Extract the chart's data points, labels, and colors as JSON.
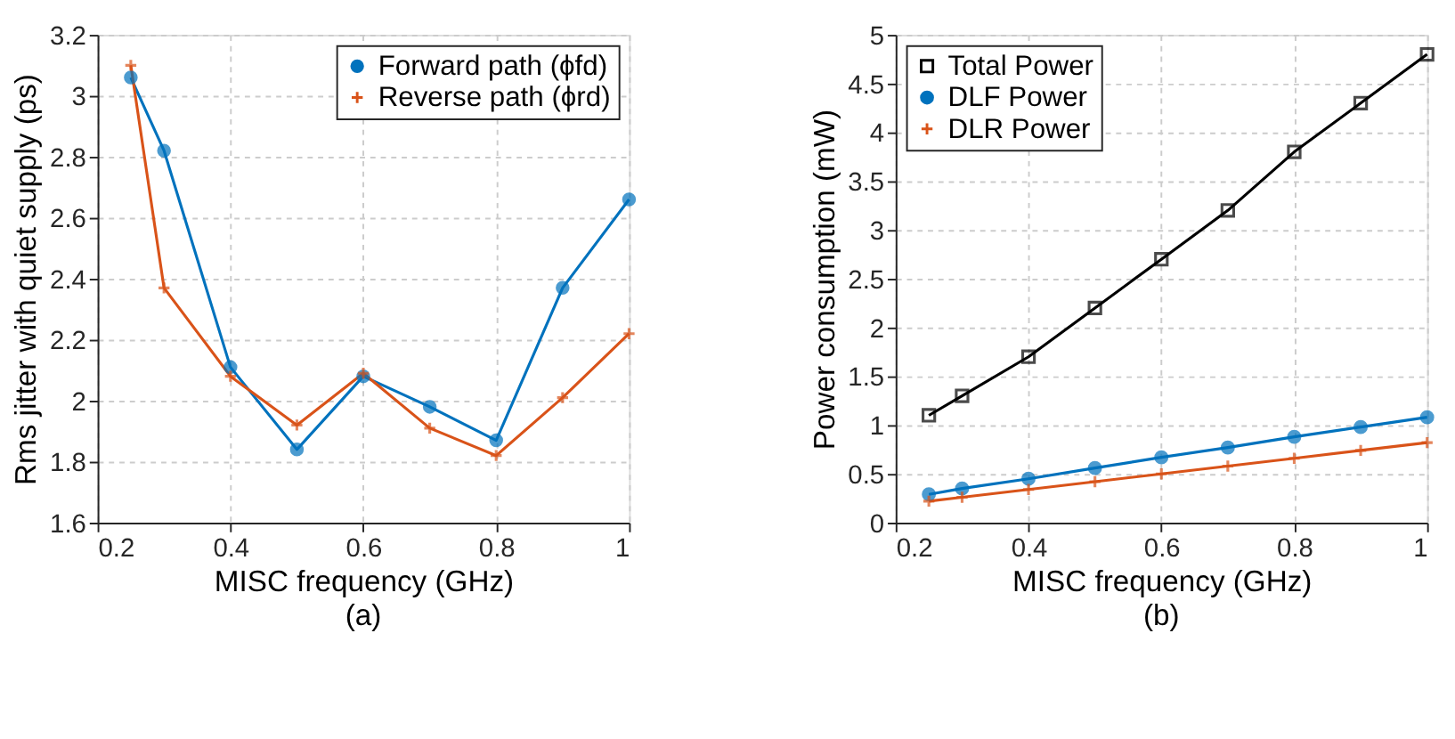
{
  "chart_data": [
    {
      "type": "line",
      "xlabel": "MISC frequency (GHz)",
      "ylabel": "Rms jitter with quiet supply (ps)",
      "x": [
        0.25,
        0.3,
        0.4,
        0.5,
        0.6,
        0.7,
        0.8,
        0.9,
        1.0
      ],
      "xlim": [
        0.2,
        1
      ],
      "xticks": [
        0.2,
        0.4,
        0.6,
        0.8,
        1
      ],
      "ylim": [
        1.6,
        3.2
      ],
      "yticks": [
        1.6,
        1.8,
        2,
        2.2,
        2.4,
        2.6,
        2.8,
        3,
        3.2
      ],
      "grid": true,
      "legend": "top right",
      "annotations": [
        "(a)"
      ],
      "series": [
        {
          "name": "Forward path (ϕfd)",
          "color": "#0072bd",
          "marker": "circle",
          "values": [
            3.06,
            2.82,
            2.11,
            1.84,
            2.08,
            1.98,
            1.87,
            2.37,
            2.66
          ]
        },
        {
          "name": "Reverse path (ϕrd)",
          "color": "#d95319",
          "marker": "cross",
          "values": [
            3.1,
            2.37,
            2.08,
            1.92,
            2.09,
            1.91,
            1.82,
            2.01,
            2.22
          ]
        }
      ]
    },
    {
      "type": "line",
      "xlabel": "MISC frequency (GHz)",
      "ylabel": "Power consumption (mW)",
      "x": [
        0.25,
        0.3,
        0.4,
        0.5,
        0.6,
        0.7,
        0.8,
        0.9,
        1.0
      ],
      "xlim": [
        0.2,
        1
      ],
      "xticks": [
        0.2,
        0.4,
        0.6,
        0.8,
        1
      ],
      "ylim": [
        0,
        5
      ],
      "yticks": [
        0,
        0.5,
        1,
        1.5,
        2,
        2.5,
        3,
        3.5,
        4,
        4.5,
        5
      ],
      "grid": true,
      "legend": "top left",
      "annotations": [
        "(b)"
      ],
      "series": [
        {
          "name": "Total Power",
          "color": "#000000",
          "marker": "square",
          "values": [
            1.1,
            1.3,
            1.7,
            2.2,
            2.7,
            3.2,
            3.8,
            4.3,
            4.8
          ]
        },
        {
          "name": "DLF Power",
          "color": "#0072bd",
          "marker": "circle",
          "values": [
            0.29,
            0.35,
            0.45,
            0.56,
            0.67,
            0.77,
            0.88,
            0.98,
            1.08
          ]
        },
        {
          "name": "DLR Power",
          "color": "#d95319",
          "marker": "cross",
          "values": [
            0.22,
            0.26,
            0.34,
            0.42,
            0.5,
            0.58,
            0.66,
            0.74,
            0.82
          ]
        }
      ]
    }
  ]
}
